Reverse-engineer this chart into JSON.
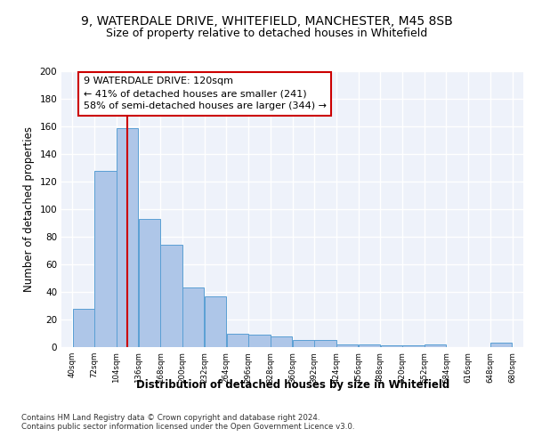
{
  "title_line1": "9, WATERDALE DRIVE, WHITEFIELD, MANCHESTER, M45 8SB",
  "title_line2": "Size of property relative to detached houses in Whitefield",
  "xlabel": "Distribution of detached houses by size in Whitefield",
  "ylabel": "Number of detached properties",
  "bar_values": [
    28,
    128,
    159,
    93,
    74,
    43,
    37,
    10,
    9,
    8,
    5,
    5,
    2,
    2,
    1,
    1,
    2,
    0,
    0,
    3
  ],
  "bin_edges": [
    40,
    72,
    104,
    136,
    168,
    200,
    232,
    264,
    296,
    328,
    360,
    392,
    424,
    456,
    488,
    520,
    552,
    584,
    616,
    648,
    680
  ],
  "bar_color": "#aec6e8",
  "bar_edge_color": "#5a9fd4",
  "property_size": 120,
  "annotation_text": "9 WATERDALE DRIVE: 120sqm\n← 41% of detached houses are smaller (241)\n58% of semi-detached houses are larger (344) →",
  "annotation_box_color": "#ffffff",
  "annotation_box_edge_color": "#cc0000",
  "vline_color": "#cc0000",
  "footer_line1": "Contains HM Land Registry data © Crown copyright and database right 2024.",
  "footer_line2": "Contains public sector information licensed under the Open Government Licence v3.0.",
  "bg_color": "#eef2fa",
  "grid_color": "#ffffff",
  "ylim": [
    0,
    200
  ],
  "yticks": [
    0,
    20,
    40,
    60,
    80,
    100,
    120,
    140,
    160,
    180,
    200
  ],
  "title_fontsize": 10,
  "subtitle_fontsize": 9,
  "axis_label_fontsize": 8.5,
  "tick_fontsize": 7.5,
  "annotation_fontsize": 8
}
